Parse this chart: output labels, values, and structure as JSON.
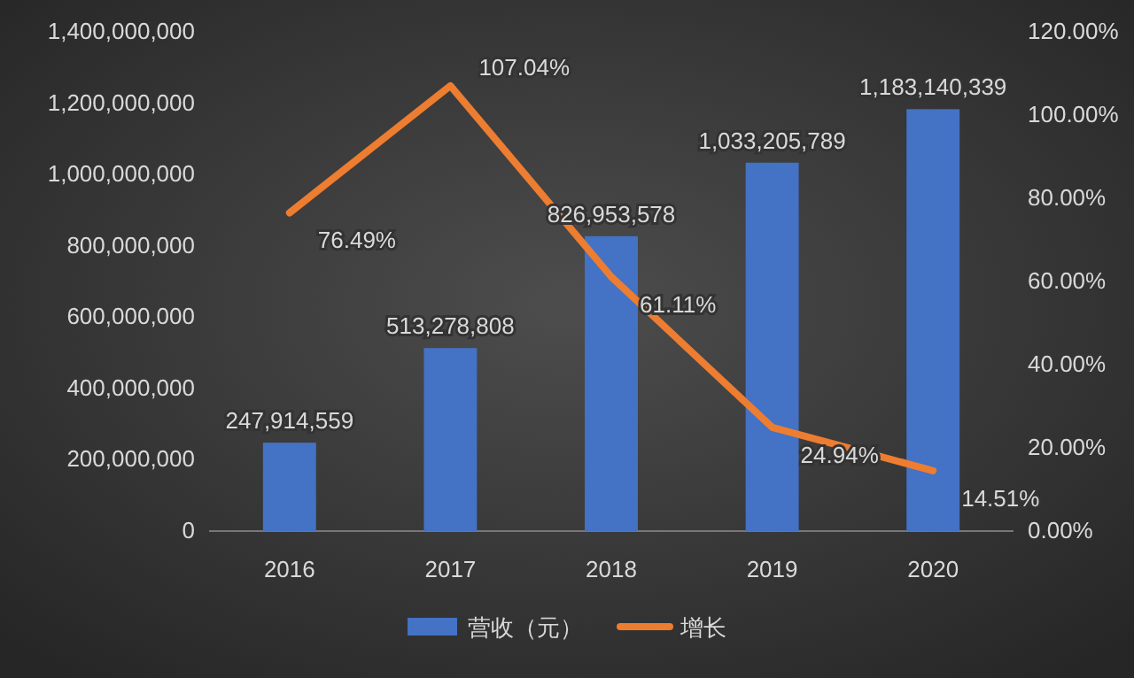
{
  "chart_data": {
    "type": "bar",
    "categories": [
      "2016",
      "2017",
      "2018",
      "2019",
      "2020"
    ],
    "series": [
      {
        "name": "营收（元）",
        "color": "#4472c4",
        "values": [
          247914559,
          513278808,
          826953578,
          1033205789,
          1183140339
        ],
        "value_labels": [
          "247,914,559",
          "513,278,808",
          "826,953,578",
          "1,033,205,789",
          "1,183,140,339"
        ]
      },
      {
        "name": "增长",
        "type": "line",
        "axis": "y2",
        "color": "#ed7d31",
        "values": [
          76.49,
          107.04,
          61.11,
          24.94,
          14.51
        ],
        "value_labels": [
          "76.49%",
          "107.04%",
          "61.11%",
          "24.94%",
          "14.51%"
        ]
      }
    ],
    "ylim": [
      0,
      1400000000
    ],
    "yticks": [
      0,
      {
        "value": 200000000,
        "label": "200,000,000"
      },
      {
        "value": 400000000,
        "label": "400,000,000"
      },
      {
        "value": 600000000,
        "label": "600,000,000"
      },
      {
        "value": 800000000,
        "label": "800,000,000"
      },
      {
        "value": 1000000000,
        "label": "1,000,000,000"
      },
      {
        "value": 1200000000,
        "label": "1,200,000,000"
      },
      {
        "value": 1400000000,
        "label": "1,400,000,000"
      }
    ],
    "y2lim": [
      0,
      120
    ],
    "y2ticks": [
      {
        "value": 0,
        "label": "0.00%"
      },
      {
        "value": 20,
        "label": "20.00%"
      },
      {
        "value": 40,
        "label": "40.00%"
      },
      {
        "value": 60,
        "label": "60.00%"
      },
      {
        "value": 80,
        "label": "80.00%"
      },
      {
        "value": 100,
        "label": "100.00%"
      },
      {
        "value": 120,
        "label": "120.00%"
      }
    ],
    "legend": "bottom",
    "marker": "none",
    "line_style": "solid"
  }
}
